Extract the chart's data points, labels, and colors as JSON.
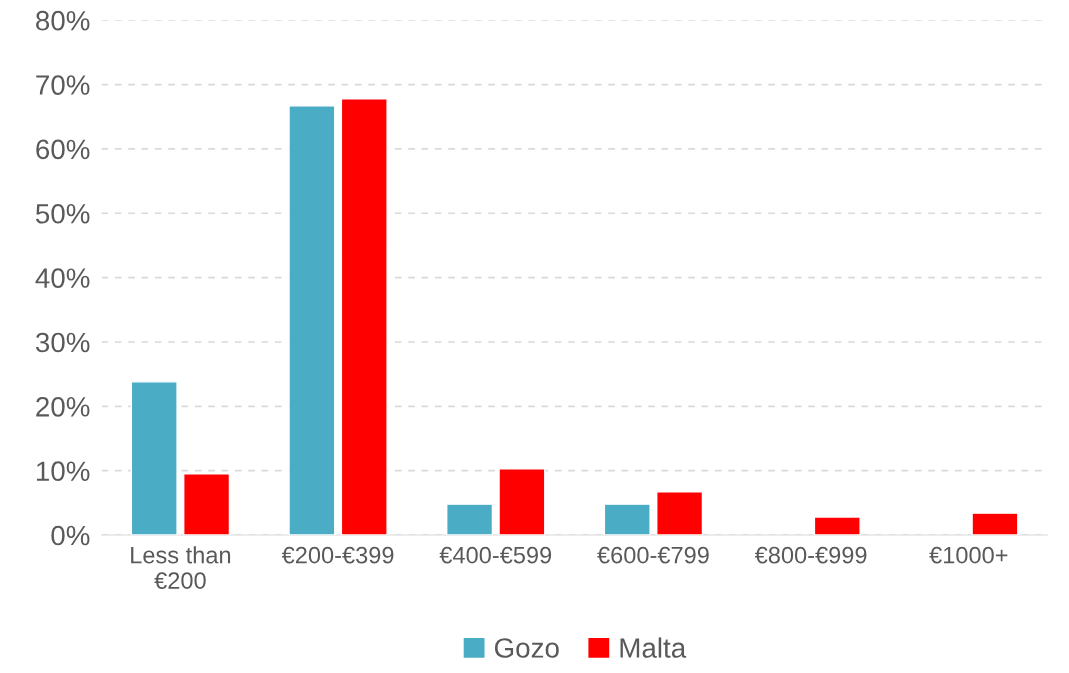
{
  "chart_data": {
    "type": "bar",
    "categories": [
      "Less than\n€200",
      "€200-€399",
      "€400-€599",
      "€600-€799",
      "€800-€999",
      "€1000+"
    ],
    "series": [
      {
        "name": "Gozo",
        "color": "#4bacc6",
        "values": [
          23.8,
          66.7,
          4.8,
          4.8,
          null,
          null
        ]
      },
      {
        "name": "Malta",
        "color": "#ff0000",
        "values": [
          9.5,
          67.8,
          10.3,
          6.7,
          2.8,
          3.4
        ]
      }
    ],
    "ylim": [
      0,
      80
    ],
    "yticks": [
      {
        "value": 0,
        "label": "0%"
      },
      {
        "value": 10,
        "label": "10%"
      },
      {
        "value": 20,
        "label": "20%"
      },
      {
        "value": 30,
        "label": "30%"
      },
      {
        "value": 40,
        "label": "40%"
      },
      {
        "value": 50,
        "label": "50%"
      },
      {
        "value": 60,
        "label": "60%"
      },
      {
        "value": 70,
        "label": "70%"
      },
      {
        "value": 80,
        "label": "80%"
      }
    ],
    "grid": "y",
    "legend": "bottom"
  }
}
